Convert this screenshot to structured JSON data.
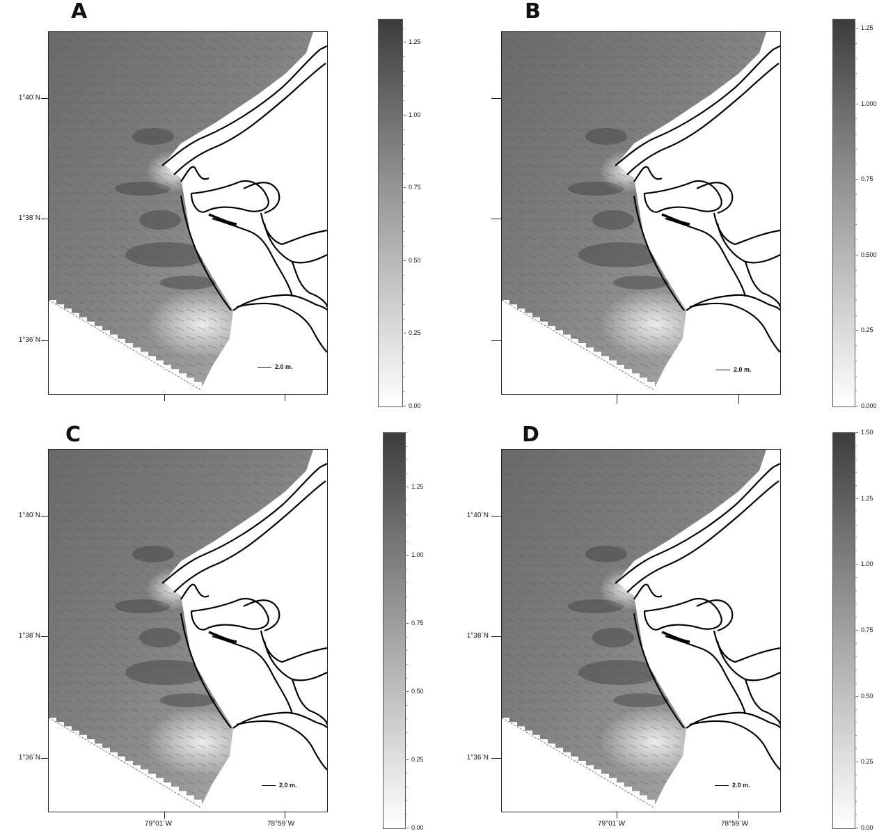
{
  "panels": [
    {
      "letter": "A",
      "lat_labels": [
        "1°40´N",
        "1°38´N",
        "1°36´N"
      ],
      "lon_labels": [
        "",
        ""
      ],
      "scale_label": "2.0 m.",
      "colorbar": {
        "ticks": [
          "1.25",
          "1.00",
          "0.75",
          "0.50",
          "0.25",
          "0.00"
        ],
        "min": 0,
        "max": 1.33
      }
    },
    {
      "letter": "B",
      "lat_labels": [
        "",
        "",
        ""
      ],
      "lon_labels": [
        "",
        ""
      ],
      "scale_label": "2.0 m.",
      "colorbar": {
        "ticks": [
          "1.25",
          "1.000",
          "0.75",
          "0.500",
          "0.25",
          "0.000"
        ],
        "min": 0,
        "max": 1.28
      }
    },
    {
      "letter": "C",
      "lat_labels": [
        "1°40´N",
        "1°38´N",
        "1°36´N"
      ],
      "lon_labels": [
        "79°01´W",
        "78°59´W"
      ],
      "scale_label": "2.0 m.",
      "colorbar": {
        "ticks": [
          "1.25",
          "1.00",
          "0.75",
          "0.50",
          "0.25",
          "0.00"
        ],
        "min": 0,
        "max": 1.45
      }
    },
    {
      "letter": "D",
      "lat_labels": [
        "1°40´N",
        "1°38´N",
        "1°36´N"
      ],
      "lon_labels": [
        "79°01´W",
        "78°59´W"
      ],
      "scale_label": "2.0 m.",
      "colorbar": {
        "ticks": [
          "1.50",
          "1.25",
          "1.00",
          "0.75",
          "0.50",
          "0.25",
          "0.00"
        ],
        "min": 0,
        "max": 1.5
      }
    }
  ],
  "colors": {
    "dark": "#3c3c3c",
    "mid": "#8a8a8a",
    "light": "#e6e6e6",
    "coast": "#000000"
  }
}
